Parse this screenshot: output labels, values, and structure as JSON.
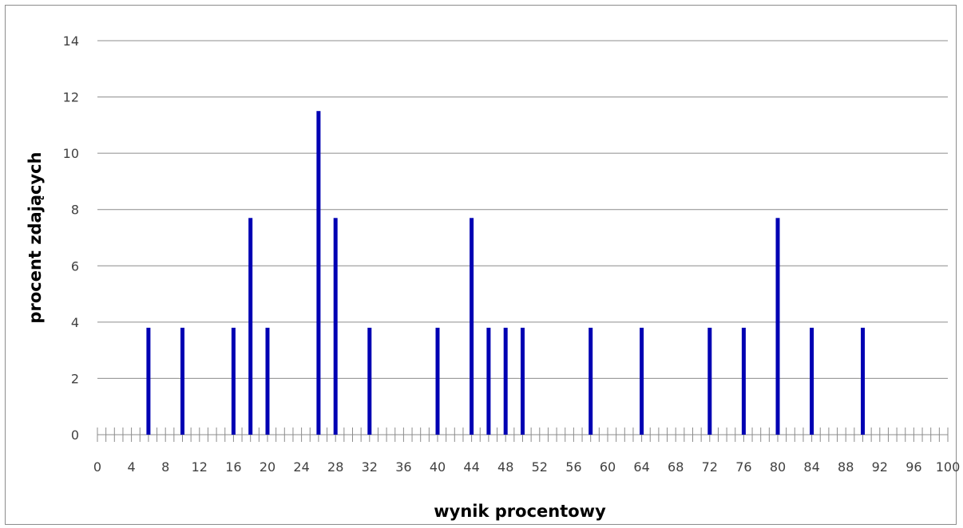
{
  "chart_data": {
    "type": "bar",
    "xlabel": "wynik procentowy",
    "ylabel": "procent zdających",
    "xlim": [
      0,
      100
    ],
    "ylim": [
      0,
      14
    ],
    "x_tick_step": 1,
    "x_label_values": [
      0,
      4,
      8,
      12,
      16,
      20,
      24,
      28,
      32,
      36,
      40,
      44,
      48,
      52,
      56,
      60,
      64,
      68,
      72,
      76,
      80,
      84,
      88,
      92,
      96,
      100
    ],
    "y_ticks": [
      0,
      2,
      4,
      6,
      8,
      10,
      12,
      14
    ],
    "grid": true,
    "legend": "none",
    "bar_color": "#0000b3",
    "points": [
      {
        "x": 6,
        "y": 3.8
      },
      {
        "x": 10,
        "y": 3.8
      },
      {
        "x": 16,
        "y": 3.8
      },
      {
        "x": 18,
        "y": 7.7
      },
      {
        "x": 20,
        "y": 3.8
      },
      {
        "x": 26,
        "y": 11.5
      },
      {
        "x": 28,
        "y": 7.7
      },
      {
        "x": 32,
        "y": 3.8
      },
      {
        "x": 40,
        "y": 3.8
      },
      {
        "x": 44,
        "y": 7.7
      },
      {
        "x": 46,
        "y": 3.8
      },
      {
        "x": 48,
        "y": 3.8
      },
      {
        "x": 50,
        "y": 3.8
      },
      {
        "x": 58,
        "y": 3.8
      },
      {
        "x": 64,
        "y": 3.8
      },
      {
        "x": 72,
        "y": 3.8
      },
      {
        "x": 76,
        "y": 3.8
      },
      {
        "x": 80,
        "y": 7.7
      },
      {
        "x": 84,
        "y": 3.8
      },
      {
        "x": 90,
        "y": 3.8
      }
    ]
  }
}
